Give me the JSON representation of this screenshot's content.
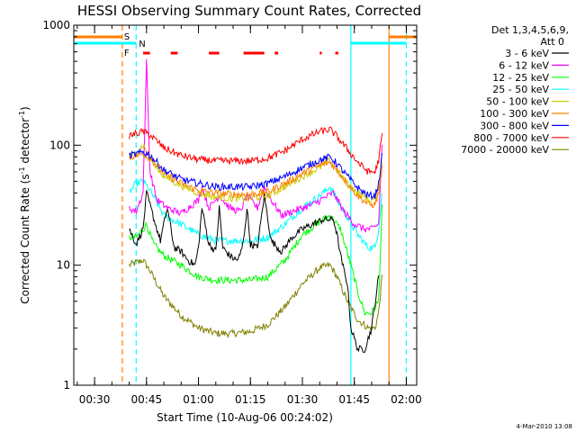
{
  "chart_data": {
    "type": "line",
    "title": "HESSI Observing Summary Count Rates, Corrected",
    "xlabel": "Start Time (10-Aug-06 00:24:02)",
    "ylabel_main": "Corrected Count Rate (s",
    "ylabel_sup1": "-1",
    "ylabel_mid": " detector",
    "ylabel_sup2": "-1",
    "ylabel_end": ")",
    "y_scale": "log",
    "ylim": [
      1,
      1000
    ],
    "xlim_minutes": [
      24,
      123
    ],
    "y_ticks": [
      {
        "value": 1,
        "label": "1"
      },
      {
        "value": 10,
        "label": "10"
      },
      {
        "value": 100,
        "label": "100"
      },
      {
        "value": 1000,
        "label": "1000"
      }
    ],
    "x_ticks": [
      {
        "minute": 30,
        "label": "00:30"
      },
      {
        "minute": 45,
        "label": "00:45"
      },
      {
        "minute": 60,
        "label": "01:00"
      },
      {
        "minute": 75,
        "label": "01:15"
      },
      {
        "minute": 90,
        "label": "01:30"
      },
      {
        "minute": 105,
        "label": "01:45"
      },
      {
        "minute": 120,
        "label": "02:00"
      }
    ],
    "legend": {
      "placement": "right",
      "header": [
        "Det 1,3,4,5,6,9,",
        "Att 0"
      ]
    },
    "series": [
      {
        "name": "3 - 6 keV",
        "color": "#000000",
        "points": [
          [
            40,
            20
          ],
          [
            42,
            15
          ],
          [
            44,
            20
          ],
          [
            45,
            40
          ],
          [
            47,
            25
          ],
          [
            49,
            16
          ],
          [
            51,
            30
          ],
          [
            53,
            14
          ],
          [
            55,
            13
          ],
          [
            57,
            11
          ],
          [
            59,
            10
          ],
          [
            60,
            14
          ],
          [
            61,
            30
          ],
          [
            63,
            15
          ],
          [
            65,
            13
          ],
          [
            66,
            30
          ],
          [
            67,
            14
          ],
          [
            69,
            12
          ],
          [
            71,
            11
          ],
          [
            72,
            12
          ],
          [
            73,
            16
          ],
          [
            74,
            30
          ],
          [
            75,
            15
          ],
          [
            77,
            14
          ],
          [
            79,
            38
          ],
          [
            81,
            16
          ],
          [
            84,
            13
          ],
          [
            87,
            17
          ],
          [
            90,
            20
          ],
          [
            93,
            22
          ],
          [
            96,
            24
          ],
          [
            99,
            24
          ],
          [
            100,
            18
          ],
          [
            101,
            12
          ],
          [
            102,
            9
          ],
          [
            103,
            7
          ],
          [
            104,
            3
          ],
          [
            106,
            2
          ],
          [
            108,
            2
          ],
          [
            110,
            3
          ],
          [
            112,
            8
          ]
        ]
      },
      {
        "name": "6 - 12 keV",
        "color": "#ff00ff",
        "points": [
          [
            40,
            30
          ],
          [
            42,
            28
          ],
          [
            44,
            40
          ],
          [
            45,
            500
          ],
          [
            46,
            60
          ],
          [
            48,
            35
          ],
          [
            51,
            30
          ],
          [
            55,
            27
          ],
          [
            60,
            35
          ],
          [
            61,
            45
          ],
          [
            63,
            30
          ],
          [
            66,
            38
          ],
          [
            69,
            30
          ],
          [
            72,
            28
          ],
          [
            74,
            38
          ],
          [
            77,
            30
          ],
          [
            79,
            45
          ],
          [
            81,
            35
          ],
          [
            84,
            26
          ],
          [
            87,
            28
          ],
          [
            90,
            30
          ],
          [
            93,
            32
          ],
          [
            96,
            36
          ],
          [
            99,
            40
          ],
          [
            102,
            28
          ],
          [
            105,
            22
          ],
          [
            108,
            20
          ],
          [
            110,
            20
          ],
          [
            112,
            22
          ],
          [
            113,
            100
          ]
        ]
      },
      {
        "name": "12 - 25 keV",
        "color": "#00ff00",
        "points": [
          [
            40,
            17
          ],
          [
            42,
            17
          ],
          [
            44,
            20
          ],
          [
            45,
            22
          ],
          [
            47,
            15
          ],
          [
            50,
            12
          ],
          [
            55,
            10
          ],
          [
            60,
            8
          ],
          [
            65,
            7.5
          ],
          [
            70,
            7.5
          ],
          [
            75,
            7.5
          ],
          [
            80,
            8
          ],
          [
            85,
            11
          ],
          [
            90,
            18
          ],
          [
            95,
            23
          ],
          [
            98,
            26
          ],
          [
            101,
            20
          ],
          [
            104,
            10
          ],
          [
            106,
            6
          ],
          [
            108,
            4
          ],
          [
            110,
            4
          ],
          [
            112,
            5
          ],
          [
            113,
            30
          ]
        ]
      },
      {
        "name": "25 - 50 keV",
        "color": "#00ffff",
        "points": [
          [
            40,
            40
          ],
          [
            42,
            48
          ],
          [
            44,
            50
          ],
          [
            46,
            42
          ],
          [
            48,
            33
          ],
          [
            50,
            26
          ],
          [
            55,
            22
          ],
          [
            60,
            18
          ],
          [
            65,
            16
          ],
          [
            70,
            16
          ],
          [
            75,
            16
          ],
          [
            80,
            17
          ],
          [
            85,
            22
          ],
          [
            90,
            30
          ],
          [
            95,
            38
          ],
          [
            98,
            45
          ],
          [
            100,
            35
          ],
          [
            103,
            25
          ],
          [
            106,
            18
          ],
          [
            109,
            14
          ],
          [
            111,
            14
          ],
          [
            112,
            20
          ],
          [
            113,
            40
          ]
        ]
      },
      {
        "name": "50 - 100 keV",
        "color": "#cccc00",
        "points": [
          [
            40,
            80
          ],
          [
            42,
            85
          ],
          [
            44,
            100
          ],
          [
            46,
            80
          ],
          [
            48,
            65
          ],
          [
            50,
            55
          ],
          [
            55,
            46
          ],
          [
            60,
            40
          ],
          [
            65,
            37
          ],
          [
            70,
            36
          ],
          [
            75,
            36
          ],
          [
            80,
            38
          ],
          [
            85,
            45
          ],
          [
            90,
            55
          ],
          [
            95,
            65
          ],
          [
            98,
            75
          ],
          [
            100,
            62
          ],
          [
            103,
            48
          ],
          [
            106,
            40
          ],
          [
            109,
            35
          ],
          [
            111,
            35
          ],
          [
            112,
            45
          ],
          [
            113,
            70
          ]
        ]
      },
      {
        "name": "100 - 300 keV",
        "color": "#ff7f00",
        "points": [
          [
            40,
            80
          ],
          [
            42,
            82
          ],
          [
            44,
            85
          ],
          [
            46,
            78
          ],
          [
            48,
            68
          ],
          [
            50,
            58
          ],
          [
            55,
            48
          ],
          [
            60,
            42
          ],
          [
            65,
            40
          ],
          [
            70,
            39
          ],
          [
            75,
            39
          ],
          [
            80,
            41
          ],
          [
            85,
            48
          ],
          [
            90,
            58
          ],
          [
            95,
            68
          ],
          [
            98,
            72
          ],
          [
            100,
            62
          ],
          [
            103,
            48
          ],
          [
            106,
            38
          ],
          [
            109,
            32
          ],
          [
            111,
            32
          ],
          [
            112,
            40
          ],
          [
            113,
            65
          ]
        ]
      },
      {
        "name": "300 - 800 keV",
        "color": "#0000ff",
        "points": [
          [
            40,
            82
          ],
          [
            42,
            84
          ],
          [
            44,
            88
          ],
          [
            46,
            82
          ],
          [
            48,
            72
          ],
          [
            50,
            62
          ],
          [
            55,
            52
          ],
          [
            60,
            48
          ],
          [
            65,
            45
          ],
          [
            70,
            45
          ],
          [
            75,
            45
          ],
          [
            80,
            48
          ],
          [
            85,
            55
          ],
          [
            90,
            65
          ],
          [
            95,
            75
          ],
          [
            98,
            80
          ],
          [
            100,
            70
          ],
          [
            103,
            55
          ],
          [
            106,
            44
          ],
          [
            109,
            38
          ],
          [
            111,
            38
          ],
          [
            112,
            48
          ],
          [
            113,
            80
          ]
        ]
      },
      {
        "name": "800 - 7000 keV",
        "color": "#ff0000",
        "points": [
          [
            40,
            120
          ],
          [
            42,
            125
          ],
          [
            44,
            130
          ],
          [
            46,
            122
          ],
          [
            48,
            108
          ],
          [
            50,
            95
          ],
          [
            55,
            82
          ],
          [
            60,
            76
          ],
          [
            65,
            74
          ],
          [
            70,
            74
          ],
          [
            75,
            74
          ],
          [
            80,
            78
          ],
          [
            85,
            90
          ],
          [
            90,
            112
          ],
          [
            95,
            130
          ],
          [
            98,
            135
          ],
          [
            100,
            118
          ],
          [
            103,
            92
          ],
          [
            106,
            72
          ],
          [
            109,
            60
          ],
          [
            111,
            60
          ],
          [
            112,
            75
          ],
          [
            113,
            120
          ]
        ]
      },
      {
        "name": "7000 - 20000 keV",
        "color": "#808000",
        "points": [
          [
            40,
            10
          ],
          [
            42,
            10.5
          ],
          [
            44,
            11
          ],
          [
            46,
            9
          ],
          [
            48,
            7
          ],
          [
            50,
            5.5
          ],
          [
            55,
            3.8
          ],
          [
            60,
            3
          ],
          [
            65,
            2.7
          ],
          [
            70,
            2.7
          ],
          [
            75,
            2.8
          ],
          [
            80,
            3.2
          ],
          [
            85,
            4.5
          ],
          [
            90,
            7
          ],
          [
            95,
            9.5
          ],
          [
            98,
            10
          ],
          [
            100,
            8
          ],
          [
            103,
            5
          ],
          [
            106,
            3.5
          ],
          [
            109,
            3
          ],
          [
            111,
            3
          ],
          [
            112,
            4
          ],
          [
            113,
            8
          ]
        ]
      }
    ],
    "state_flags": {
      "saa": {
        "label": "S",
        "color": "#ff7f00",
        "intervals": [
          [
            24,
            38
          ],
          [
            115,
            123
          ]
        ]
      },
      "night": {
        "label": "N",
        "color": "#00ffff",
        "intervals": [
          [
            24,
            42
          ],
          [
            104,
            120
          ]
        ]
      },
      "flare": {
        "label": "F",
        "color": "#ff0000",
        "segments": [
          [
            44,
            46
          ],
          [
            52,
            54
          ],
          [
            63,
            66
          ],
          [
            73,
            79
          ],
          [
            82,
            83
          ],
          [
            95,
            95.6
          ],
          [
            99.5,
            100.4
          ]
        ]
      }
    },
    "vertical_markers": [
      {
        "minute": 38,
        "color": "#ff7f00",
        "style": "dashed"
      },
      {
        "minute": 42,
        "color": "#00ffff",
        "style": "dashed"
      },
      {
        "minute": 104,
        "color": "#00ffff",
        "style": "solid"
      },
      {
        "minute": 115,
        "color": "#ff7f00",
        "style": "solid"
      },
      {
        "minute": 120,
        "color": "#00ffff",
        "style": "dashed"
      }
    ]
  },
  "footer": {
    "timestamp": "4-Mar-2010 13:08"
  }
}
